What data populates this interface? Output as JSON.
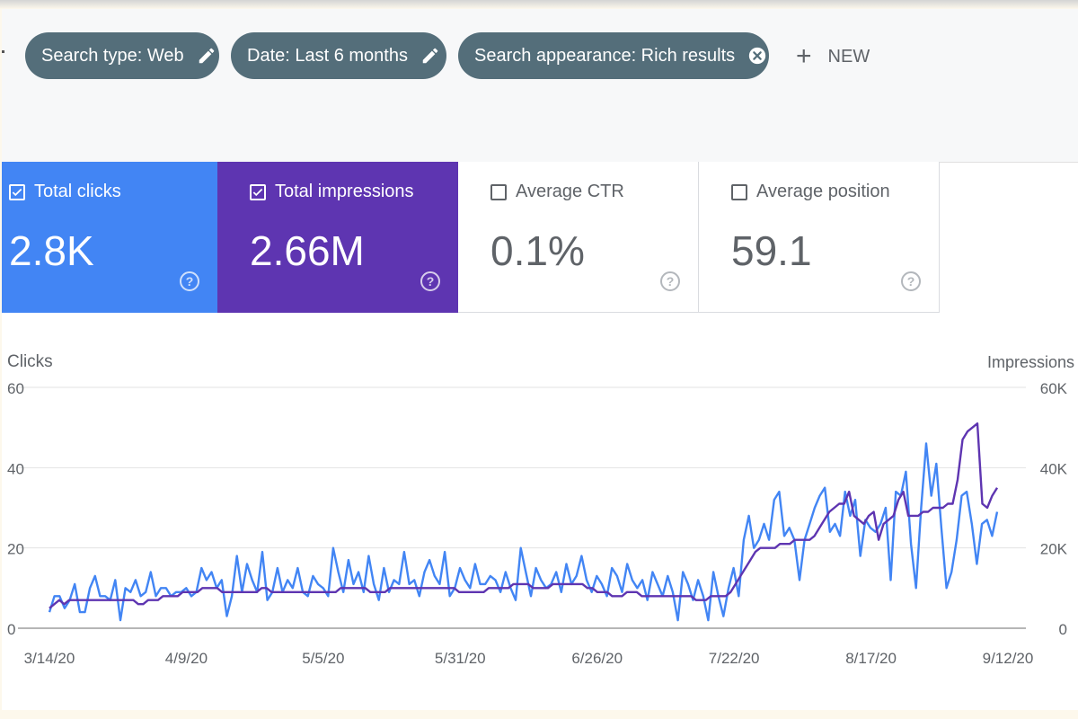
{
  "filters": {
    "chips": [
      {
        "label": "Search type: Web",
        "icon": "pencil-icon"
      },
      {
        "label": "Date: Last 6 months",
        "icon": "pencil-icon"
      },
      {
        "label": "Search appearance: Rich results",
        "icon": "close-circle-icon"
      }
    ],
    "new_label": "NEW"
  },
  "metrics": [
    {
      "label": "Total clicks",
      "value": "2.8K",
      "checked": true,
      "color": "#4285f4"
    },
    {
      "label": "Total impressions",
      "value": "2.66M",
      "checked": true,
      "color": "#5e35b1"
    },
    {
      "label": "Average CTR",
      "value": "0.1%",
      "checked": false
    },
    {
      "label": "Average position",
      "value": "59.1",
      "checked": false
    }
  ],
  "chart_data": {
    "type": "line",
    "left_axis_label": "Clicks",
    "right_axis_label": "Impressions",
    "left_ticks": [
      "60",
      "40",
      "20",
      "0"
    ],
    "right_ticks": [
      "60K",
      "40K",
      "20K",
      "0"
    ],
    "ylim_left": [
      0,
      60
    ],
    "ylim_right": [
      0,
      60000
    ],
    "x_tick_labels": [
      "3/14/20",
      "4/9/20",
      "5/5/20",
      "5/31/20",
      "6/26/20",
      "7/22/20",
      "8/17/20",
      "9/12/20"
    ],
    "x_start": "3/14/20",
    "x_end": "9/12/20",
    "grid": true,
    "series": [
      {
        "color": "#4285f4",
        "axis": "left",
        "values": [
          4,
          8,
          8,
          5,
          7,
          11,
          4,
          4,
          10,
          13,
          8,
          8,
          7,
          12,
          2,
          10,
          9,
          12,
          8,
          9,
          14,
          8,
          10,
          10,
          8,
          9,
          9,
          10,
          8,
          9,
          15,
          12,
          14,
          10,
          12,
          3,
          8,
          18,
          9,
          16,
          12,
          9,
          19,
          7,
          9,
          15,
          9,
          12,
          10,
          15,
          9,
          8,
          13,
          11,
          10,
          8,
          20,
          14,
          9,
          17,
          11,
          14,
          9,
          18,
          11,
          7,
          15,
          9,
          12,
          11,
          19,
          11,
          12,
          8,
          14,
          17,
          13,
          11,
          19,
          8,
          10,
          15,
          12,
          10,
          16,
          11,
          11,
          13,
          12,
          9,
          14,
          10,
          7,
          20,
          14,
          8,
          15,
          12,
          10,
          11,
          14,
          9,
          16,
          11,
          13,
          18,
          12,
          9,
          13,
          11,
          8,
          15,
          13,
          9,
          16,
          12,
          10,
          12,
          7,
          14,
          11,
          8,
          13,
          9,
          2,
          14,
          11,
          7,
          12,
          8,
          2,
          14,
          8,
          3,
          10,
          15,
          8,
          22,
          28,
          20,
          22,
          26,
          22,
          32,
          34,
          23,
          25,
          22,
          12,
          22,
          26,
          30,
          33,
          35,
          24,
          26,
          23,
          34,
          28,
          32,
          18,
          27,
          25,
          24,
          26,
          30,
          12,
          34,
          33,
          39,
          21,
          10,
          30,
          46,
          33,
          41,
          25,
          10,
          14,
          22,
          33,
          34,
          26,
          16,
          26,
          27,
          23,
          29
        ]
      },
      {
        "color": "#5e35b1",
        "axis": "right",
        "values": [
          5,
          6,
          7,
          6,
          7,
          7,
          7,
          7,
          7,
          7,
          7,
          7,
          7,
          7,
          7,
          7,
          7,
          7,
          6,
          6,
          7,
          7,
          7,
          8,
          8,
          8,
          8,
          9,
          9,
          9,
          9,
          10,
          10,
          10,
          10,
          9,
          9,
          9,
          9,
          9,
          9,
          9,
          9,
          10,
          10,
          9,
          9,
          9,
          9,
          9,
          9,
          9,
          9,
          9,
          9,
          9,
          9,
          9,
          9,
          10,
          10,
          10,
          10,
          10,
          10,
          9,
          9,
          9,
          9,
          10,
          10,
          10,
          10,
          10,
          10,
          10,
          10,
          10,
          10,
          10,
          10,
          10,
          10,
          9,
          9,
          9,
          9,
          9,
          9,
          10,
          10,
          10,
          10,
          10,
          11,
          11,
          11,
          11,
          10,
          10,
          10,
          10,
          11,
          11,
          11,
          11,
          11,
          11,
          11,
          10,
          10,
          9,
          9,
          9,
          8,
          8,
          8,
          9,
          9,
          9,
          8,
          8,
          8,
          8,
          8,
          8,
          8,
          8,
          8,
          8,
          8,
          7,
          7,
          7,
          8,
          8,
          8,
          8,
          9,
          11,
          13,
          15,
          17,
          19,
          20,
          20,
          20,
          20,
          21,
          21,
          21,
          22,
          22,
          22,
          22,
          23,
          25,
          27,
          29,
          30,
          31,
          31,
          34,
          28,
          27,
          26,
          28,
          29,
          22,
          26,
          27,
          28,
          32,
          34,
          28,
          28,
          28,
          29,
          29,
          30,
          30,
          30,
          31,
          31,
          37,
          47,
          49,
          50,
          51,
          31,
          30,
          33,
          35
        ]
      }
    ]
  }
}
